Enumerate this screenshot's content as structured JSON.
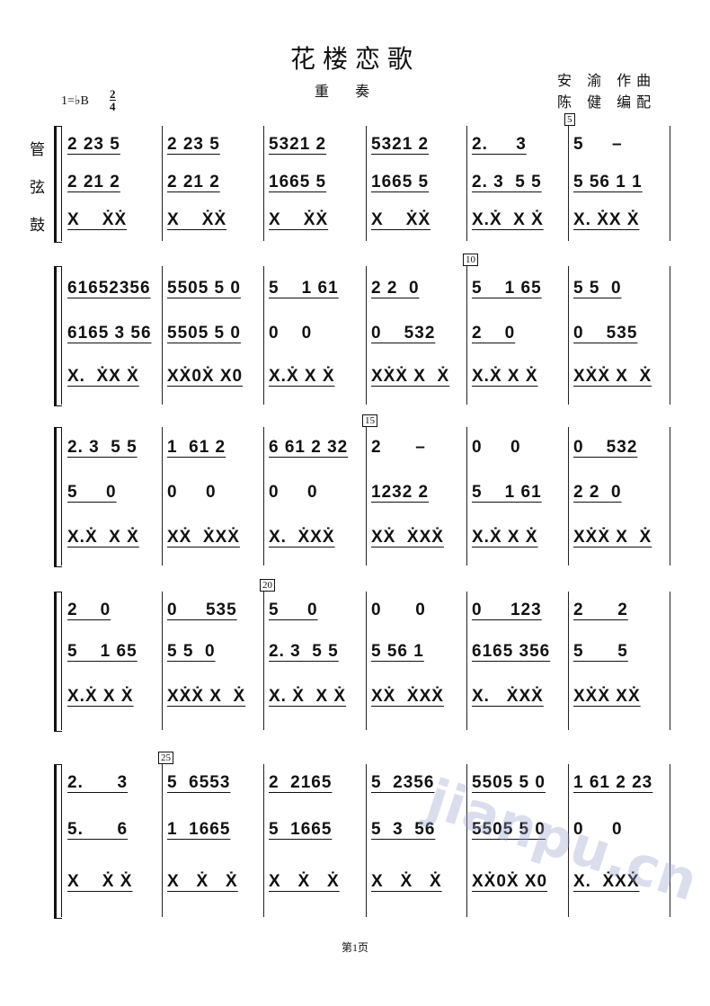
{
  "title": "花楼恋歌",
  "subtitle": "重 奏",
  "composer": "安 渝 作曲",
  "arranger": "陈 健 编配",
  "key": "1=♭B",
  "meter": {
    "numerator": "2",
    "denominator": "4"
  },
  "parts": [
    "管",
    "弦",
    "鼓"
  ],
  "systems": [
    {
      "rehearsal": {
        "label": "5",
        "measure": 6
      },
      "measures": [
        [
          "2 23 5",
          "2 21 2",
          "X    ẊẊ"
        ],
        [
          "2 23 5",
          "2 21 2",
          "X    ẊẊ"
        ],
        [
          "5321 2",
          "1665 5",
          "X    ẊẊ"
        ],
        [
          "5321 2",
          "1665 5",
          "X    ẊẊ"
        ],
        [
          "2.     3",
          "2. 3  5 5",
          "X.Ẋ  X Ẋ"
        ],
        [
          "5     –",
          "5 56 1 1",
          "X. ẊX Ẋ"
        ]
      ]
    },
    {
      "rehearsal": {
        "label": "10",
        "measure": 5
      },
      "measures": [
        [
          "61652356",
          "6165 3 56",
          "X.  ẊX Ẋ"
        ],
        [
          "5505 5 0",
          "5505 5 0",
          "XẊ0Ẋ X0"
        ],
        [
          "5    1 61",
          "0    0",
          "X.Ẋ X Ẋ"
        ],
        [
          "2 2  0",
          "0    532",
          "XẊẊ X  Ẋ"
        ],
        [
          "5    1 65",
          "2    0",
          "X.Ẋ X Ẋ"
        ],
        [
          "5 5  0",
          "0    535",
          "XẊẊ X  Ẋ"
        ]
      ]
    },
    {
      "rehearsal": {
        "label": "15",
        "measure": 4
      },
      "measures": [
        [
          "2. 3  5 5",
          "5     0",
          "X.Ẋ  X Ẋ"
        ],
        [
          "1  61 2",
          "0     0",
          "XẊ  ẊXẊ"
        ],
        [
          "6 61 2 32",
          "0     0",
          "X.  ẊXẊ"
        ],
        [
          "2      –",
          "1232 2",
          "XẊ  ẊXẊ"
        ],
        [
          "0     0",
          "5    1 61",
          "X.Ẋ X Ẋ"
        ],
        [
          "0    532",
          "2 2  0",
          "XẊẊ X  Ẋ"
        ]
      ]
    },
    {
      "rehearsal": {
        "label": "20",
        "measure": 3
      },
      "measures": [
        [
          "2    0",
          "5    1 65",
          "X.Ẋ X Ẋ"
        ],
        [
          "0     535",
          "5 5  0",
          "XẊẊ X  Ẋ"
        ],
        [
          "5     0",
          "2. 3  5 5",
          "X. Ẋ  X Ẋ"
        ],
        [
          "0      0",
          "5 56 1",
          "XẊ  ẊXẊ"
        ],
        [
          "0     123",
          "6165 356",
          "X.   ẊXẊ"
        ],
        [
          "2      2",
          "5      5",
          "XẊẊ XẊ"
        ]
      ]
    },
    {
      "rehearsal": {
        "label": "25",
        "measure": 2
      },
      "measures": [
        [
          "2.      3",
          "5.      6",
          "X    Ẋ Ẋ"
        ],
        [
          "5  6553",
          "1  1665",
          "X   Ẋ   Ẋ"
        ],
        [
          "2  2165",
          "5  1665",
          "X   Ẋ   Ẋ"
        ],
        [
          "5  2356",
          "5  3  56",
          "X   Ẋ   Ẋ"
        ],
        [
          "5505 5 0",
          "5505 5 0",
          "XẊ0Ẋ X0"
        ],
        [
          "1 61 2 23",
          "0     0",
          "X.  ẊXẊ"
        ]
      ]
    }
  ],
  "footer": "第1页",
  "watermark": "jianpu.cn"
}
